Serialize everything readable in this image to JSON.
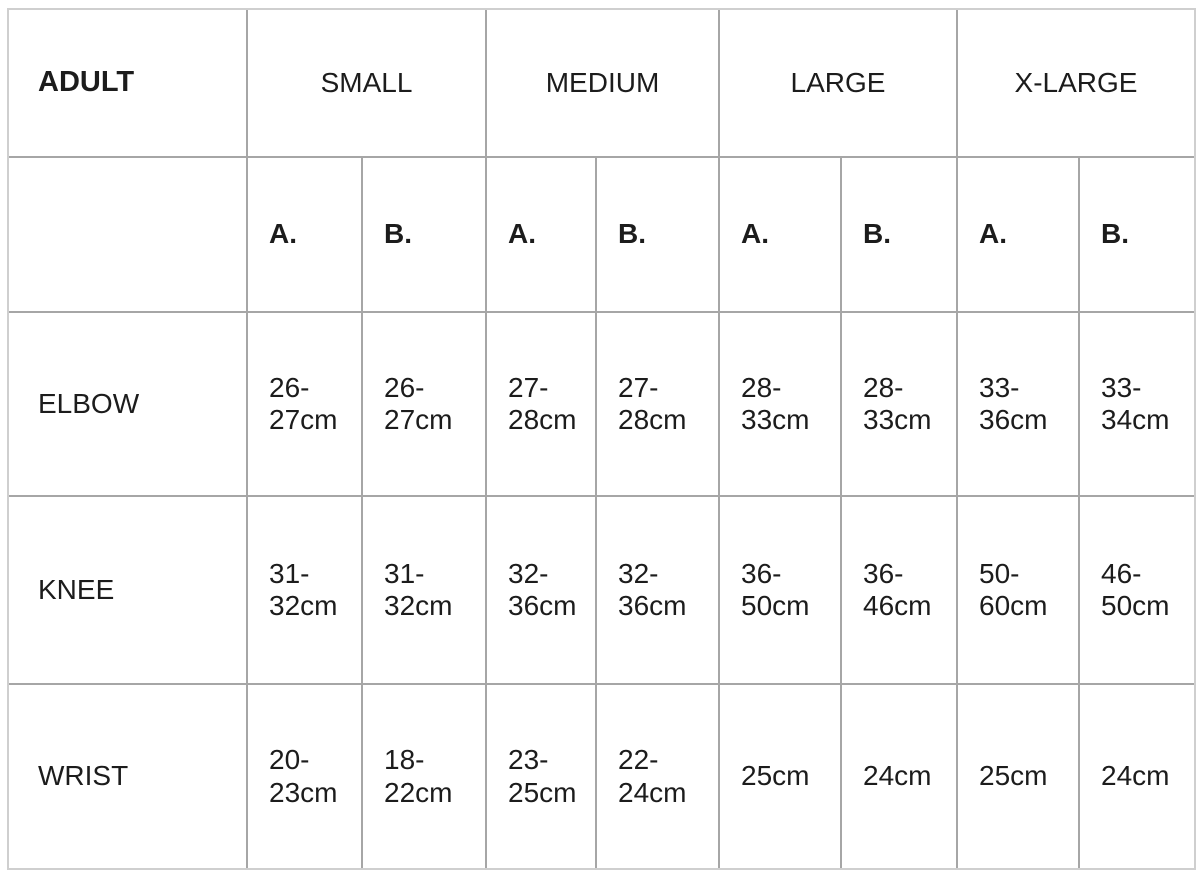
{
  "table": {
    "corner_label": "ADULT",
    "size_headers": [
      "SMALL",
      "MEDIUM",
      "LARGE",
      "X-LARGE"
    ],
    "measure_headers": [
      "A.",
      "B.",
      "A.",
      "B.",
      "A.",
      "B.",
      "A.",
      "B."
    ],
    "rows": [
      {
        "label": "ELBOW",
        "values": [
          "26-27cm",
          "26-27cm",
          "27-28cm",
          "27-28cm",
          "28-33cm",
          "28-33cm",
          "33-36cm",
          "33-34cm"
        ]
      },
      {
        "label": "KNEE",
        "values": [
          "31-32cm",
          "31-32cm",
          "32-36cm",
          "32-36cm",
          "36-50cm",
          "36-46cm",
          "50-60cm",
          "46-50cm"
        ]
      },
      {
        "label": "WRIST",
        "values": [
          "20-23cm",
          "18-22cm",
          "23-25cm",
          "22-24cm",
          "25cm",
          "24cm",
          "25cm",
          "24cm"
        ]
      }
    ],
    "colors": {
      "grid_line": "#a6a6a6",
      "outer_border": "#cfcfcf",
      "text": "#1c1c1c",
      "background": "#ffffff"
    }
  }
}
